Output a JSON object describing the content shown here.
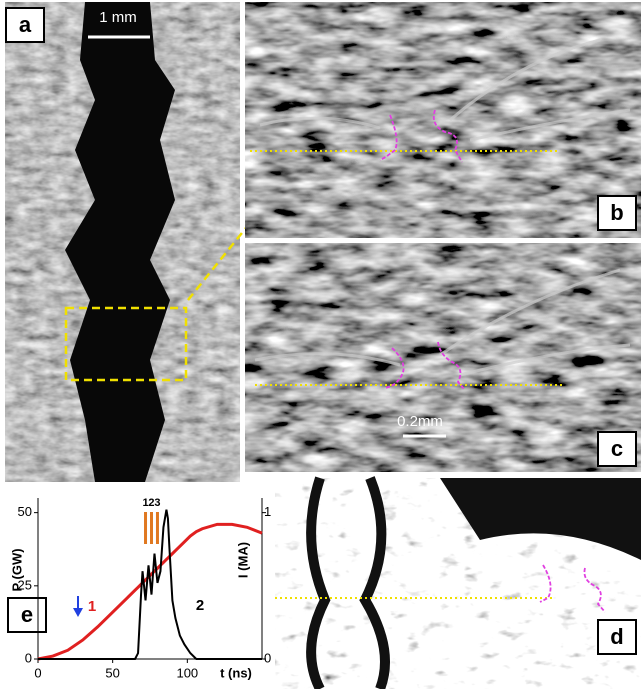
{
  "panels": {
    "a": {
      "label": "a",
      "scale_bar": "1 mm"
    },
    "b": {
      "label": "b"
    },
    "c": {
      "label": "c",
      "scale_bar": "0.2mm"
    },
    "d": {
      "label": "d"
    }
  },
  "chart_data": {
    "type": "line",
    "label": "e",
    "xlabel": "t (ns)",
    "ylabel": "P (GW)",
    "y2label": "I (MA)",
    "x": [
      0,
      10,
      20,
      30,
      40,
      50,
      60,
      65,
      67,
      69,
      70,
      72,
      74,
      76,
      78,
      80,
      82,
      84,
      86,
      87,
      88,
      90,
      92,
      95,
      98,
      102,
      106,
      110,
      120,
      130,
      140,
      150
    ],
    "series": [
      {
        "name": "1",
        "color": "#e02020",
        "axis": "y2",
        "values": [
          0,
          0.02,
          0.06,
          0.13,
          0.22,
          0.32,
          0.42,
          0.47,
          0.49,
          0.51,
          0.52,
          0.54,
          0.56,
          0.58,
          0.6,
          0.62,
          0.64,
          0.66,
          0.68,
          0.69,
          0.7,
          0.72,
          0.74,
          0.77,
          0.8,
          0.84,
          0.87,
          0.89,
          0.92,
          0.92,
          0.9,
          0.86
        ]
      },
      {
        "name": "2",
        "color": "#000000",
        "values": [
          0,
          0,
          0,
          0,
          0,
          0,
          0,
          0,
          2,
          22,
          30,
          20,
          32,
          22,
          36,
          26,
          30,
          45,
          51,
          48,
          38,
          20,
          14,
          8,
          5,
          2,
          0,
          0,
          0,
          0,
          0,
          0
        ]
      }
    ],
    "xlim": [
      0,
      150
    ],
    "xticks": [
      0,
      50,
      100
    ],
    "ylim": [
      0,
      55
    ],
    "yticks": [
      0,
      25,
      50
    ],
    "y2lim": [
      0,
      1.1
    ],
    "y2ticks": [
      0,
      1
    ],
    "markers": [
      {
        "label": "1",
        "x": 72
      },
      {
        "label": "2",
        "x": 76
      },
      {
        "label": "3",
        "x": 80
      }
    ],
    "marker_color": "#e07820"
  }
}
